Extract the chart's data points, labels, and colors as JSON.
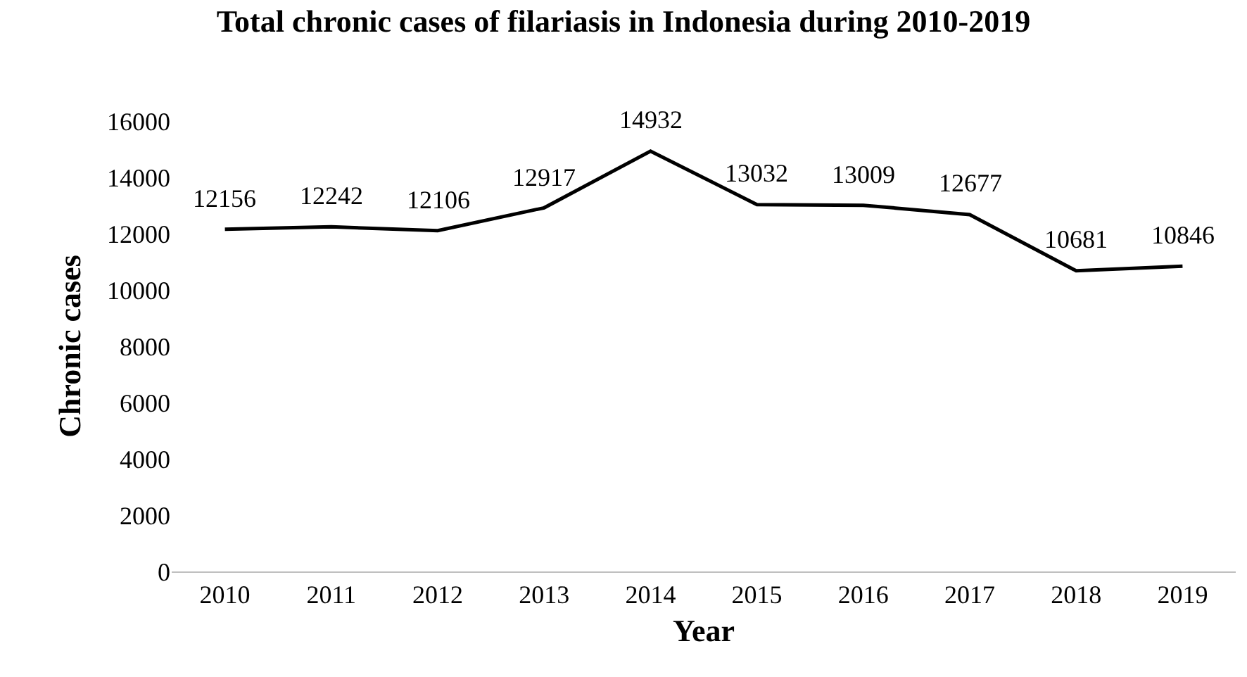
{
  "chart_data": {
    "type": "line",
    "title": "Total chronic cases of filariasis in Indonesia during 2010-2019",
    "xlabel": "Year",
    "ylabel": "Chronic cases",
    "categories": [
      "2010",
      "2011",
      "2012",
      "2013",
      "2014",
      "2015",
      "2016",
      "2017",
      "2018",
      "2019"
    ],
    "series": [
      {
        "color": "#000000",
        "values": [
          12156,
          12242,
          12106,
          12917,
          14932,
          13032,
          13009,
          12677,
          10681,
          10846
        ]
      }
    ],
    "ylim": [
      0,
      16000
    ],
    "yticks": [
      0,
      2000,
      4000,
      6000,
      8000,
      10000,
      12000,
      14000,
      16000
    ],
    "data_labels": true,
    "grid": false,
    "marker": "none",
    "line_style": "solid"
  }
}
